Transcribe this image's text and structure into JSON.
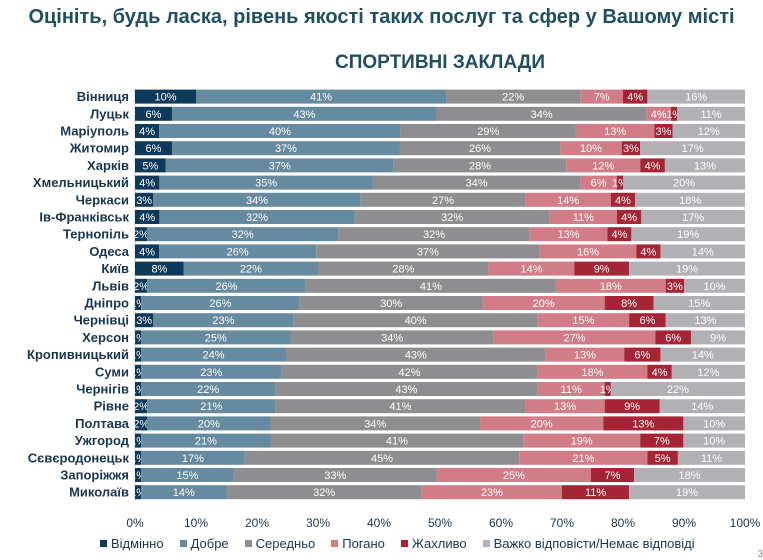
{
  "chart_data": {
    "type": "bar",
    "orientation": "horizontal-stacked-100",
    "title": "Оцініть, будь ласка, рівень якості таких послуг та сфер у Вашому місті",
    "subtitle": "СПОРТИВНІ ЗАКЛАДИ",
    "categories": [
      "Вінниця",
      "Луцьк",
      "Маріуполь",
      "Житомир",
      "Харків",
      "Хмельницький",
      "Черкаси",
      "Ів-Франківськ",
      "Тернопіль",
      "Одеса",
      "Київ",
      "Львів",
      "Дніпро",
      "Чернівці",
      "Херсон",
      "Кропивницький",
      "Суми",
      "Чернігів",
      "Рівне",
      "Полтава",
      "Ужгород",
      "Сєвєродонецьк",
      "Запоріжжя",
      "Миколаїв"
    ],
    "series": [
      {
        "name": "Відмінно",
        "color": "#0d3a5a",
        "values": [
          10,
          6,
          4,
          6,
          5,
          4,
          3,
          4,
          2,
          4,
          8,
          2,
          1,
          3,
          1,
          1,
          1,
          1,
          2,
          2,
          1,
          1,
          1,
          1
        ]
      },
      {
        "name": "Добре",
        "color": "#668aa0",
        "values": [
          41,
          43,
          40,
          37,
          37,
          35,
          34,
          32,
          32,
          26,
          22,
          26,
          26,
          23,
          25,
          24,
          23,
          22,
          21,
          20,
          21,
          17,
          15,
          14
        ]
      },
      {
        "name": "Середньо",
        "color": "#8e8e90",
        "values": [
          22,
          34,
          29,
          26,
          28,
          34,
          27,
          32,
          32,
          37,
          28,
          41,
          30,
          40,
          34,
          43,
          42,
          43,
          41,
          34,
          41,
          45,
          33,
          32
        ]
      },
      {
        "name": "Погано",
        "color": "#d17c86",
        "values": [
          7,
          4,
          13,
          10,
          12,
          6,
          14,
          11,
          13,
          16,
          14,
          18,
          20,
          15,
          27,
          13,
          18,
          11,
          13,
          20,
          19,
          21,
          25,
          23
        ]
      },
      {
        "name": "Жахливо",
        "color": "#a52536",
        "values": [
          4,
          1,
          3,
          3,
          4,
          1,
          4,
          4,
          4,
          4,
          9,
          3,
          8,
          6,
          6,
          6,
          4,
          1,
          9,
          13,
          7,
          5,
          7,
          11
        ]
      },
      {
        "name": "Важко відповісти/Немає відповіді",
        "color": "#b1b1b5",
        "values": [
          16,
          11,
          12,
          17,
          13,
          20,
          18,
          17,
          19,
          14,
          19,
          10,
          15,
          13,
          9,
          14,
          12,
          22,
          14,
          10,
          10,
          11,
          18,
          19
        ]
      }
    ],
    "xticks": [
      "0%",
      "10%",
      "20%",
      "30%",
      "40%",
      "50%",
      "60%",
      "70%",
      "80%",
      "90%",
      "100%"
    ],
    "xlim": [
      0,
      100
    ],
    "legend": "bottom"
  },
  "page_number": "3"
}
